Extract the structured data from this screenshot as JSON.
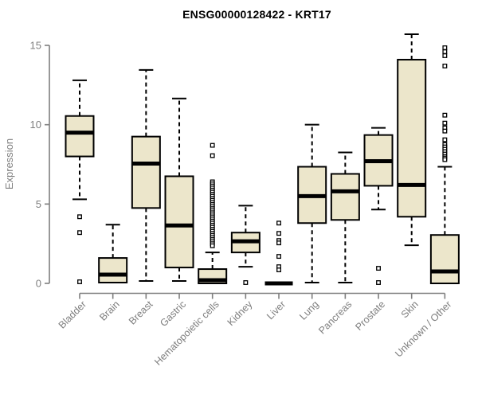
{
  "chart_data": {
    "type": "boxplot",
    "title": "ENSG00000128422 - KRT17",
    "ylabel": "Expression",
    "xlabel": "",
    "ylim": [
      0,
      15
    ],
    "yticks": [
      0,
      5,
      10,
      15
    ],
    "grid": false,
    "legend": "none",
    "box_fill": "#ECE6CB",
    "box_stroke": "#000000",
    "axis_color": "#7e7e7e",
    "label_color": "#7e7e7e",
    "title_color": "#000000",
    "categories": [
      "Bladder",
      "Brain",
      "Breast",
      "Gastric",
      "Hematopoietic cells",
      "Kidney",
      "Liver",
      "Lung",
      "Pancreas",
      "Prostate",
      "Skin",
      "Unknown / Other"
    ],
    "boxes": [
      {
        "category": "Bladder",
        "whisker_low": 5.3,
        "q1": 8.0,
        "median": 9.5,
        "q3": 10.55,
        "whisker_high": 12.8,
        "outliers": [
          4.2,
          3.2,
          0.1
        ]
      },
      {
        "category": "Brain",
        "whisker_low": 0.05,
        "q1": 0.05,
        "median": 0.55,
        "q3": 1.6,
        "whisker_high": 3.7,
        "outliers": []
      },
      {
        "category": "Breast",
        "whisker_low": 0.15,
        "q1": 4.75,
        "median": 7.55,
        "q3": 9.25,
        "whisker_high": 13.45,
        "outliers": []
      },
      {
        "category": "Gastric",
        "whisker_low": 0.15,
        "q1": 1.0,
        "median": 3.65,
        "q3": 6.75,
        "whisker_high": 11.65,
        "outliers": []
      },
      {
        "category": "Hematopoietic cells",
        "whisker_low": 0,
        "q1": 0,
        "median": 0.2,
        "q3": 0.9,
        "whisker_high": 1.95,
        "outliers": [
          8.7,
          8.05,
          6.4,
          6.27,
          6.14,
          6.01,
          5.88,
          5.75,
          5.62,
          5.49,
          5.36,
          5.23,
          5.1,
          4.97,
          4.84,
          4.71,
          4.58,
          4.45,
          4.32,
          4.19,
          4.06,
          3.93,
          3.8,
          3.67,
          3.54,
          3.41,
          3.28,
          3.15,
          3.02,
          2.89,
          2.76,
          2.63,
          2.5,
          2.37
        ]
      },
      {
        "category": "Kidney",
        "whisker_low": 1.05,
        "q1": 1.95,
        "median": 2.65,
        "q3": 3.2,
        "whisker_high": 4.9,
        "outliers": [
          0.05
        ]
      },
      {
        "category": "Liver",
        "whisker_low": 0,
        "q1": 0,
        "median": 0,
        "q3": 0,
        "whisker_high": 0,
        "outliers": [
          3.8,
          3.15,
          2.7,
          2.55,
          1.7,
          1.05,
          0.85
        ]
      },
      {
        "category": "Lung",
        "whisker_low": 0.05,
        "q1": 3.8,
        "median": 5.5,
        "q3": 7.35,
        "whisker_high": 10.0,
        "outliers": []
      },
      {
        "category": "Pancreas",
        "whisker_low": 0.05,
        "q1": 4.0,
        "median": 5.8,
        "q3": 6.9,
        "whisker_high": 8.25,
        "outliers": []
      },
      {
        "category": "Prostate",
        "whisker_low": 4.65,
        "q1": 6.15,
        "median": 7.7,
        "q3": 9.35,
        "whisker_high": 9.8,
        "outliers": [
          0.95,
          0.05
        ]
      },
      {
        "category": "Skin",
        "whisker_low": 2.4,
        "q1": 4.2,
        "median": 6.2,
        "q3": 14.1,
        "whisker_high": 15.7,
        "outliers": []
      },
      {
        "category": "Unknown / Other",
        "whisker_low": 0,
        "q1": 0,
        "median": 0.75,
        "q3": 3.05,
        "whisker_high": 7.35,
        "outliers": [
          14.85,
          14.6,
          14.35,
          13.7,
          10.6,
          10.1,
          9.8,
          9.6,
          9.05,
          8.75,
          8.6,
          8.45,
          8.3,
          8.15,
          8.0,
          7.9,
          7.8
        ]
      }
    ]
  }
}
